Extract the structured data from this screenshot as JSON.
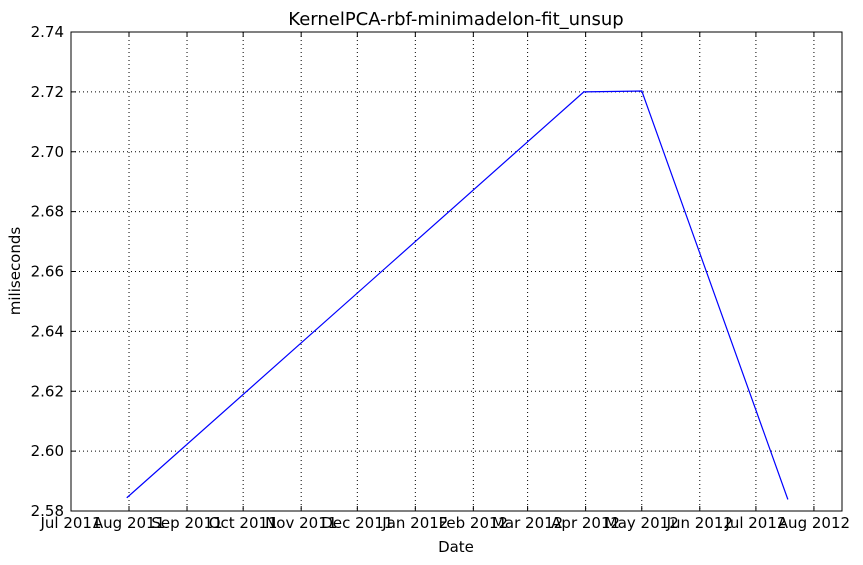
{
  "chart_data": {
    "type": "line",
    "title": "KernelPCA-rbf-minimadelon-fit_unsup",
    "xlabel": "Date",
    "ylabel": "miliseconds",
    "x_ticks": [
      "Jul 2011",
      "Aug 2011",
      "Sep 2011",
      "Oct 2011",
      "Nov 2011",
      "Dec 2011",
      "Jan 2012",
      "Feb 2012",
      "Mar 2012",
      "Apr 2012",
      "May 2012",
      "Jun 2012",
      "Jul 2012",
      "Aug 2012"
    ],
    "xlim": [
      "2011-07-01",
      "2012-08-16"
    ],
    "ylim": [
      2.58,
      2.74
    ],
    "y_ticks": [
      "2.58",
      "2.60",
      "2.62",
      "2.64",
      "2.66",
      "2.68",
      "2.70",
      "2.72",
      "2.74"
    ],
    "grid": true,
    "series": [
      {
        "color": "#0000ff",
        "points": [
          {
            "x": "2011-07-31",
            "y": 2.5845
          },
          {
            "x": "2012-03-31",
            "y": 2.72
          },
          {
            "x": "2012-05-01",
            "y": 2.7203
          },
          {
            "x": "2012-07-18",
            "y": 2.584
          }
        ]
      }
    ]
  }
}
